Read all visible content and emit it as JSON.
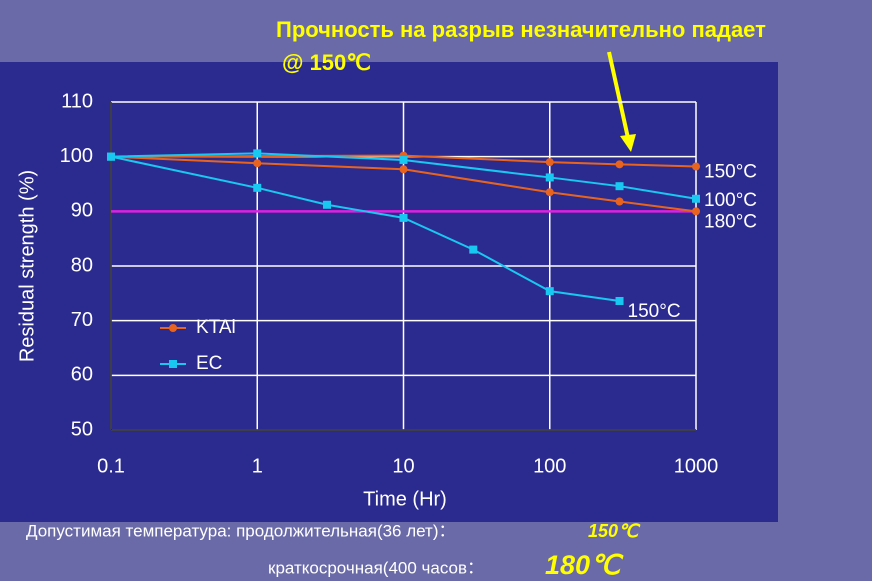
{
  "chart_data": {
    "type": "line",
    "annotation": "Прочность на разрыв незначительно падает",
    "annotation_sub": "@ 150℃",
    "xlabel": "Time (Hr)",
    "ylabel": "Residual strength (%)",
    "xscale": "log",
    "xlim": [
      0.1,
      1000
    ],
    "xticks": [
      0.1,
      1,
      10,
      100,
      1000
    ],
    "ylim": [
      50,
      110
    ],
    "yticks": [
      50,
      60,
      70,
      80,
      90,
      100,
      110
    ],
    "grid": true,
    "reference_line": {
      "value": 90,
      "color": "#e020e0"
    },
    "groups": [
      {
        "name": "KTAl",
        "color": "#e8641e",
        "marker": "circle",
        "series": [
          {
            "label": "150°C",
            "x": [
              0.1,
              10,
              100,
              300,
              1000
            ],
            "values": [
              100,
              100.2,
              99,
              98.6,
              98.2
            ]
          },
          {
            "label": "180°C",
            "x": [
              0.1,
              1,
              10,
              100,
              300,
              1000
            ],
            "values": [
              100,
              98.8,
              97.7,
              93.5,
              91.8,
              90
            ]
          }
        ]
      },
      {
        "name": "EC",
        "color": "#19c8f0",
        "marker": "square",
        "series": [
          {
            "label": "100°C",
            "x": [
              0.1,
              1,
              10,
              100,
              300,
              1000
            ],
            "values": [
              100,
              100.6,
              99.4,
              96.2,
              94.6,
              92.3
            ]
          },
          {
            "label": "150°C",
            "x": [
              0.1,
              1,
              3,
              10,
              30,
              100,
              300
            ],
            "values": [
              100,
              94.3,
              91.2,
              88.8,
              83,
              75.4,
              73.6
            ]
          }
        ]
      }
    ]
  },
  "footer": {
    "line1_text": "Допустимая температура:   продолжительная(36 лет)：",
    "line1_value": "150℃",
    "line2_text": "краткосрочная(400 часов：",
    "line2_value": "180℃"
  }
}
